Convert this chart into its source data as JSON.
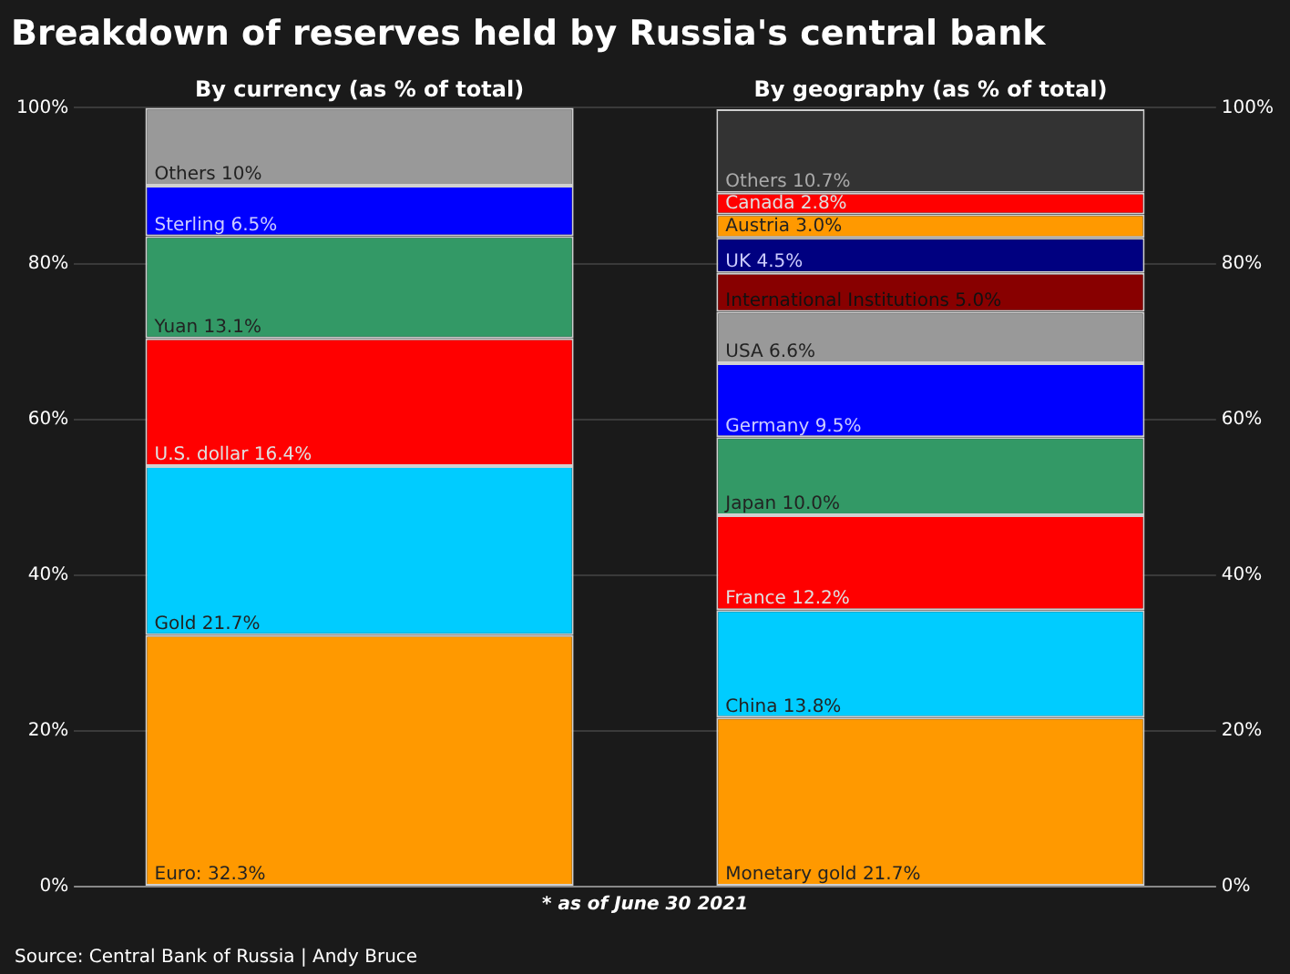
{
  "chart_data": {
    "type": "bar",
    "stacked": true,
    "title": "Breakdown of reserves held by Russia's central bank",
    "categories": [
      "By currency (as % of total)",
      "By geography (as % of total)"
    ],
    "series": [
      {
        "color": "#ff9900",
        "values": [
          32.3,
          21.7
        ],
        "value_labels": [
          "Euro: 32.3%",
          "Monetary gold 21.7%"
        ]
      },
      {
        "color": "#00ccff",
        "values": [
          21.7,
          13.8
        ],
        "value_labels": [
          "Gold 21.7%",
          "China 13.8%"
        ]
      },
      {
        "color": "#ff0000",
        "values": [
          16.4,
          12.2
        ],
        "value_labels": [
          "U.S. dollar 16.4%",
          "France 12.2%"
        ]
      },
      {
        "color": "#339966",
        "values": [
          13.1,
          10.0
        ],
        "value_labels": [
          "Yuan 13.1%",
          "Japan 10.0%"
        ]
      },
      {
        "color": "#0000ff",
        "values": [
          6.5,
          9.5
        ],
        "value_labels": [
          "Sterling 6.5%",
          "Germany 9.5%"
        ]
      },
      {
        "colors": [
          "#999999",
          "#999999"
        ],
        "values": [
          10,
          6.6
        ],
        "value_labels": [
          "Others 10%",
          "USA 6.6%"
        ]
      },
      {
        "color": "#880000",
        "values": [
          null,
          5.0
        ],
        "value_labels": [
          null,
          "International Institutions 5.0%"
        ]
      },
      {
        "color": "#000080",
        "values": [
          null,
          4.5
        ],
        "value_labels": [
          null,
          "UK 4.5%"
        ]
      },
      {
        "color": "#ff9900",
        "values": [
          null,
          3.0
        ],
        "value_labels": [
          null,
          "Austria 3.0%"
        ]
      },
      {
        "color": "#ff0000",
        "values": [
          null,
          2.8
        ],
        "value_labels": [
          null,
          "Canada 2.8%"
        ]
      },
      {
        "color": "#333333",
        "values": [
          null,
          10.7
        ],
        "value_labels": [
          null,
          "Others 10.7%"
        ]
      }
    ],
    "ylim": [
      0,
      100
    ],
    "yticks": [
      {
        "value": 0,
        "label": "0%"
      },
      {
        "value": 20,
        "label": "20%"
      },
      {
        "value": 40,
        "label": "40%"
      },
      {
        "value": 60,
        "label": "60%"
      },
      {
        "value": 80,
        "label": "80%"
      },
      {
        "value": 100,
        "label": "100%"
      }
    ],
    "y2lim": [
      0,
      100
    ],
    "y2ticks": [
      {
        "value": 0,
        "label": "0%"
      },
      {
        "value": 20,
        "label": "20%"
      },
      {
        "value": 40,
        "label": "40%"
      },
      {
        "value": 60,
        "label": "60%"
      },
      {
        "value": 80,
        "label": "80%"
      },
      {
        "value": 100,
        "label": "100%"
      }
    ],
    "grid": "y",
    "legend": false,
    "annotations": [
      "* as of June 30 2021",
      "Source: Central Bank of Russia | Andy Bruce"
    ]
  }
}
